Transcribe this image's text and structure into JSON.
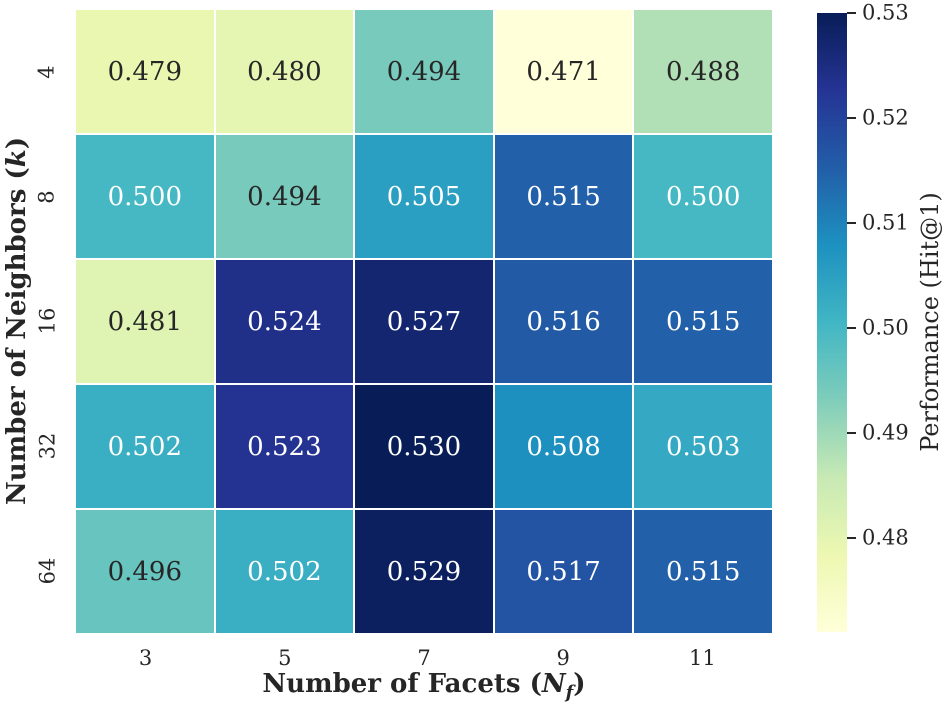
{
  "figure": {
    "background": "#ffffff",
    "text_color": "#262626",
    "grid_line_color": "#ffffff"
  },
  "chart_data": {
    "type": "heatmap",
    "title": "",
    "xlabel": "Number of Facets (N_f)",
    "ylabel": "Number of Neighbors (k)",
    "colorbar_label": "Performance (Hit@1)",
    "x_categories": [
      "3",
      "5",
      "7",
      "9",
      "11"
    ],
    "y_categories": [
      "4",
      "8",
      "16",
      "32",
      "64"
    ],
    "values": [
      [
        0.479,
        0.48,
        0.494,
        0.471,
        0.488
      ],
      [
        0.5,
        0.494,
        0.505,
        0.515,
        0.5
      ],
      [
        0.481,
        0.524,
        0.527,
        0.516,
        0.515
      ],
      [
        0.502,
        0.523,
        0.53,
        0.508,
        0.503
      ],
      [
        0.496,
        0.502,
        0.529,
        0.517,
        0.515
      ]
    ],
    "vmin": 0.471,
    "vmax": 0.53,
    "value_decimals": 3,
    "colorbar_ticks": [
      "0.53",
      "0.52",
      "0.51",
      "0.50",
      "0.49",
      "0.48"
    ],
    "colorbar_position": "right",
    "grid_lines": true,
    "colormap": {
      "name": "YlGnBu",
      "stops": [
        "#ffffd9",
        "#edf8b1",
        "#c7e9b4",
        "#7fcdbb",
        "#41b6c4",
        "#1d91c0",
        "#225ea8",
        "#253494",
        "#081d58"
      ]
    },
    "annotation_colors": {
      "dark": "#262626",
      "light": "#ffffff"
    }
  },
  "labels": {
    "x": {
      "prefix": "Number of Facets (",
      "var": "N",
      "sub": "f",
      "suffix": ")"
    },
    "y": {
      "prefix": "Number of Neighbors (",
      "var": "k",
      "suffix": ")"
    },
    "colorbar": "Performance (Hit@1)"
  }
}
